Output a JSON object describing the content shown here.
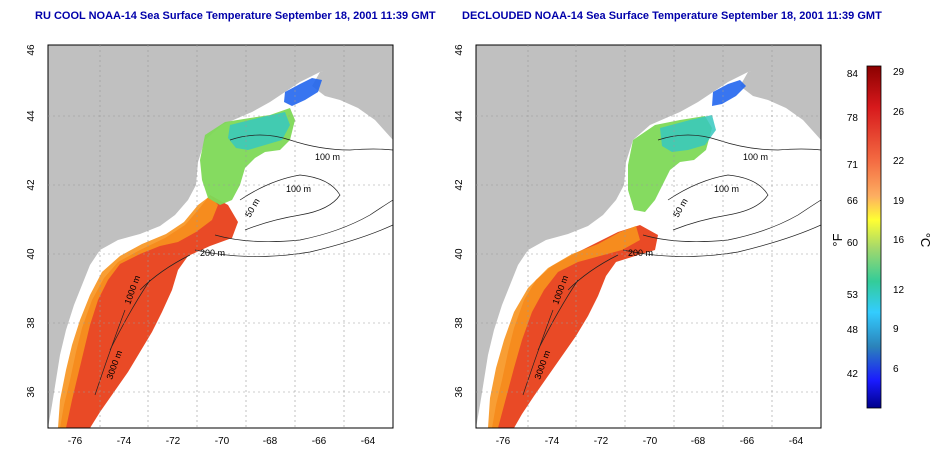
{
  "titles": {
    "left": "RU COOL NOAA-14 Sea Surface Temperature September 18, 2001 11:39 GMT",
    "right": "DECLOUDED NOAA-14 Sea Surface Temperature September 18, 2001 11:39 GMT"
  },
  "axes": {
    "lon_ticks": [
      "-76",
      "-74",
      "-72",
      "-70",
      "-68",
      "-66",
      "-64"
    ],
    "lat_ticks": [
      "36",
      "38",
      "40",
      "42",
      "44",
      "46"
    ]
  },
  "contour_labels": {
    "left": [
      "100 m",
      "100 m",
      "50 m",
      "200 m",
      "1000 m",
      "3000 m"
    ],
    "right": [
      "100 m",
      "100 m",
      "50 m",
      "200 m",
      "1000 m",
      "3000 m"
    ]
  },
  "colorbar": {
    "fahrenheit_ticks": [
      "84",
      "78",
      "71",
      "66",
      "60",
      "53",
      "48",
      "42"
    ],
    "celsius_ticks": [
      "29",
      "26",
      "22",
      "19",
      "16",
      "12",
      "9",
      "6"
    ],
    "fahrenheit_label": "°F",
    "celsius_label": "°C",
    "scale_colors": [
      "#8b0000",
      "#d7191c",
      "#f46d43",
      "#fdae61",
      "#ffff33",
      "#a6d96a",
      "#33cc99",
      "#33ccff",
      "#2b83ba",
      "#1a1aff",
      "#00008b"
    ]
  },
  "colors": {
    "land": "#c0c0c0",
    "ocean_nodata": "#ffffff",
    "title": "#0000aa"
  }
}
